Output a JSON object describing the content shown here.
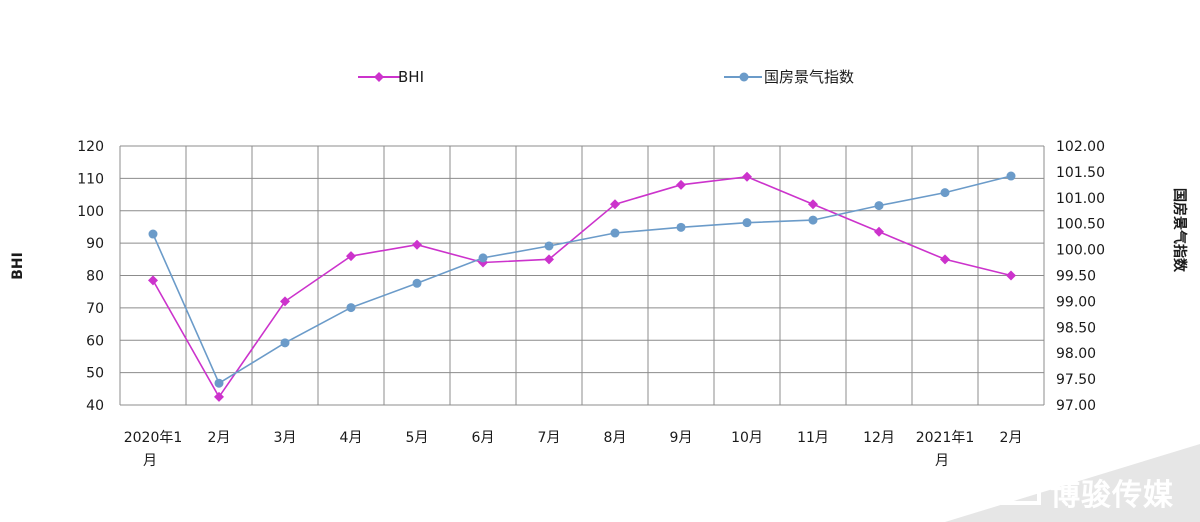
{
  "chart_data": {
    "type": "line",
    "categories": [
      "2020年1月",
      "2月",
      "3月",
      "4月",
      "5月",
      "6月",
      "7月",
      "8月",
      "9月",
      "10月",
      "11月",
      "12月",
      "2021年1月",
      "2月"
    ],
    "series": [
      {
        "name": "BHI",
        "axis": "left",
        "color": "#cc33cc",
        "marker": "diamond",
        "values": [
          78.5,
          42.5,
          72,
          86,
          89.5,
          84,
          85,
          102,
          108,
          110.5,
          102,
          93.5,
          85,
          80
        ]
      },
      {
        "name": "国房景气指数",
        "axis": "right",
        "color": "#6b9bc9",
        "marker": "circle",
        "values": [
          100.3,
          97.42,
          98.2,
          98.88,
          99.35,
          99.84,
          100.07,
          100.32,
          100.43,
          100.52,
          100.57,
          100.85,
          101.1,
          101.42
        ]
      }
    ],
    "y_left": {
      "label": "BHI",
      "lim": [
        40,
        120
      ],
      "ticks": [
        "40",
        "50",
        "60",
        "70",
        "80",
        "90",
        "100",
        "110",
        "120"
      ]
    },
    "y_right": {
      "label": "国房景气指数",
      "lim": [
        97.0,
        102.0
      ],
      "ticks": [
        "97.00",
        "97.50",
        "98.00",
        "98.50",
        "99.00",
        "99.50",
        "100.00",
        "100.50",
        "101.00",
        "101.50",
        "102.00"
      ]
    },
    "grid": true,
    "legend_position": "top"
  },
  "watermark": {
    "text": "博骏传媒"
  }
}
